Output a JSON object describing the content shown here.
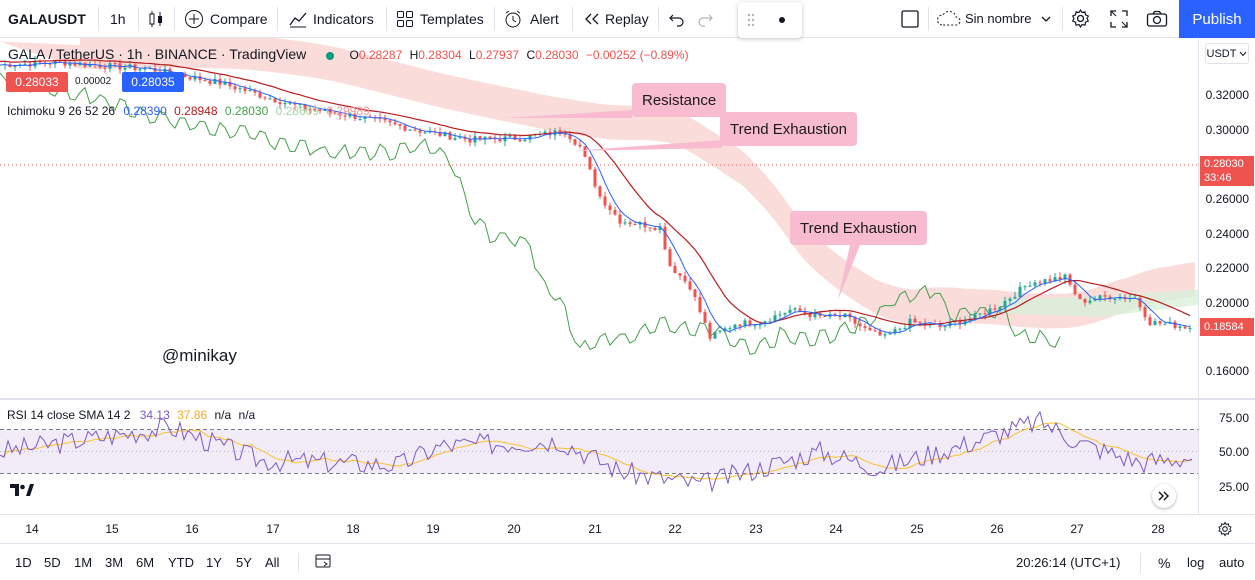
{
  "toolbar": {
    "symbol": "GALAUSDT",
    "interval": "1h",
    "compare_label": "Compare",
    "indicators_label": "Indicators",
    "templates_label": "Templates",
    "alert_label": "Alert",
    "replay_label": "Replay",
    "layout_name": "Sin nombre",
    "publish_label": "Publish"
  },
  "legend": {
    "title": "GALA / TetherUS · 1h · BINANCE · TradingView",
    "open_label": "O",
    "open": "0.28287",
    "high_label": "H",
    "high": "0.28304",
    "low_label": "L",
    "low": "0.27937",
    "close_label": "C",
    "close": "0.28030",
    "change": "−0.00252 (−0.89%)",
    "bid": "0.28033",
    "spread": "0.00002",
    "ask": "0.28035"
  },
  "ichimoku": {
    "label": "Ichimoku 9 26 52 26",
    "v1": "0.28390",
    "v2": "0.28948",
    "v3": "0.28030",
    "v4": "0.28609",
    "v5": "0.29989"
  },
  "rsi": {
    "label": "RSI 14 close SMA 14 2",
    "value": "34.13",
    "sma": "37.86",
    "na1": "n/a",
    "na2": "n/a",
    "ticks": [
      "75.00",
      "50.00",
      "25.00"
    ]
  },
  "price_axis": {
    "currency": "USDT",
    "ticks": [
      "0.32000",
      "0.30000",
      "0.26000",
      "0.24000",
      "0.22000",
      "0.20000",
      "0.16000"
    ],
    "ref_price": "0.28030",
    "countdown": "33:46",
    "last_price": "0.18584"
  },
  "time_axis": [
    "14",
    "15",
    "16",
    "17",
    "18",
    "19",
    "20",
    "21",
    "22",
    "23",
    "24",
    "25",
    "26",
    "27",
    "28"
  ],
  "annotations": {
    "resistance": "Resistance",
    "trend1": "Trend Exhaustion",
    "trend2": "Trend Exhaustion",
    "watermark": "@minikay"
  },
  "bottom": {
    "ranges": [
      "1D",
      "5D",
      "1M",
      "3M",
      "6M",
      "YTD",
      "1Y",
      "5Y",
      "All"
    ],
    "time": "20:26:14 (UTC+1)",
    "percent": "%",
    "log": "log",
    "auto": "auto"
  },
  "colors": {
    "up": "#26a69a",
    "down": "#ef5350",
    "accent": "#2962ff",
    "conversion": "#2962ff",
    "base": "#b71c1c",
    "lagging": "#43a047",
    "cloud_bear": "#f8d0cf",
    "cloud_bull": "#d9f0da",
    "rsi": "#7e57c2",
    "rsi_sma": "#fbc02d"
  }
}
